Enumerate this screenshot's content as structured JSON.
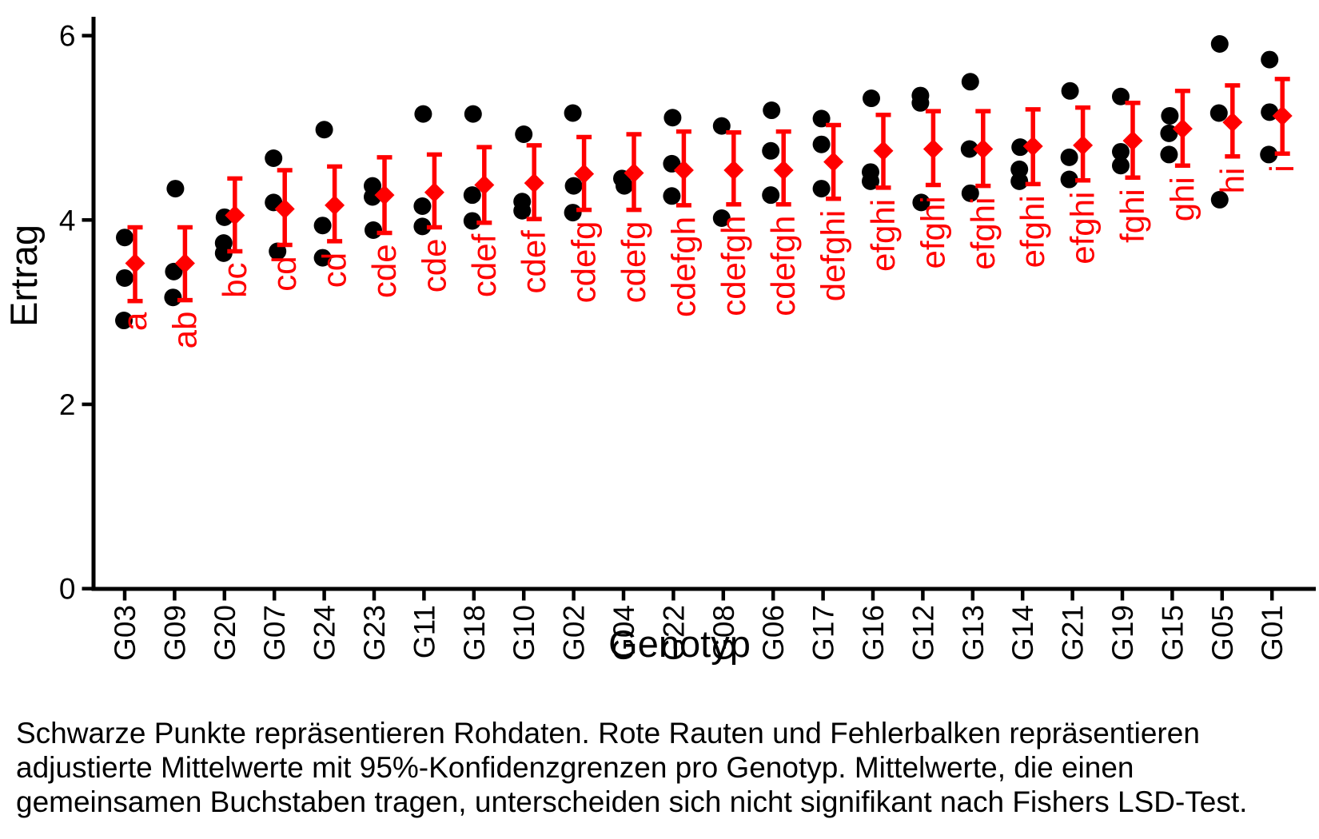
{
  "caption": {
    "lines": [
      "Schwarze Punkte repräsentieren Rohdaten. Rote Rauten und Fehlerbalken repräsentieren",
      "adjustierte Mittelwerte mit 95%-Konfidenzgrenzen pro Genotyp. Mittelwerte, die einen",
      "gemeinsamen Buchstaben tragen, unterscheiden sich nicht signifikant nach Fishers LSD-Test."
    ]
  },
  "chart_data": {
    "type": "scatter",
    "title": "",
    "xlabel": "Genotyp",
    "ylabel": "Ertrag",
    "ylim": [
      0,
      6.2
    ],
    "yticks": [
      0,
      2,
      4,
      6
    ],
    "grid": false,
    "legend": "none",
    "raw_point_color": "#000000",
    "mean_color": "#FF0000",
    "mean_symbol": "diamond",
    "interval": "95%-confidence",
    "groups": [
      {
        "genotype": "G03",
        "raw": [
          3.81,
          3.37,
          2.91
        ],
        "dx": [
          0,
          0,
          -1
        ],
        "mean": 3.53,
        "ci_low": 3.12,
        "ci_high": 3.92,
        "letters": "a"
      },
      {
        "genotype": "G09",
        "raw": [
          4.34,
          3.44,
          3.16
        ],
        "dx": [
          1,
          -1,
          -2
        ],
        "mean": 3.53,
        "ci_low": 3.13,
        "ci_high": 3.92,
        "letters": "ab"
      },
      {
        "genotype": "G20",
        "raw": [
          4.03,
          3.75,
          3.64
        ],
        "dx": [
          0,
          -1,
          -1
        ],
        "mean": 4.05,
        "ci_low": 3.66,
        "ci_high": 4.45,
        "letters": "bc"
      },
      {
        "genotype": "G07",
        "raw": [
          4.67,
          4.19,
          3.66
        ],
        "dx": [
          -1,
          -1,
          4
        ],
        "mean": 4.12,
        "ci_low": 3.73,
        "ci_high": 4.54,
        "letters": "cd"
      },
      {
        "genotype": "G24",
        "raw": [
          4.98,
          3.94,
          3.59
        ],
        "dx": [
          0,
          -2,
          -2
        ],
        "mean": 4.16,
        "ci_low": 3.77,
        "ci_high": 4.58,
        "letters": "cd"
      },
      {
        "genotype": "G23",
        "raw": [
          4.37,
          4.25,
          3.89
        ],
        "dx": [
          -2,
          -2,
          -1
        ],
        "mean": 4.27,
        "ci_low": 3.86,
        "ci_high": 4.68,
        "letters": "cde"
      },
      {
        "genotype": "G11",
        "raw": [
          5.15,
          4.15,
          3.93
        ],
        "dx": [
          -1,
          -2,
          -2
        ],
        "mean": 4.3,
        "ci_low": 3.92,
        "ci_high": 4.71,
        "letters": "cde"
      },
      {
        "genotype": "G18",
        "raw": [
          5.15,
          4.27,
          3.99
        ],
        "dx": [
          -1,
          -2,
          -2
        ],
        "mean": 4.38,
        "ci_low": 3.97,
        "ci_high": 4.79,
        "letters": "cdef"
      },
      {
        "genotype": "G10",
        "raw": [
          4.93,
          4.2,
          4.1
        ],
        "dx": [
          0,
          -2,
          -2
        ],
        "mean": 4.4,
        "ci_low": 4.01,
        "ci_high": 4.81,
        "letters": "cdef"
      },
      {
        "genotype": "G02",
        "raw": [
          5.16,
          4.37,
          4.08
        ],
        "dx": [
          -1,
          0,
          -1
        ],
        "mean": 4.5,
        "ci_low": 4.11,
        "ci_high": 4.9,
        "letters": "cdefg"
      },
      {
        "genotype": "G04",
        "raw": [
          4.45,
          4.37
        ],
        "dx": [
          -2,
          1
        ],
        "mean": 4.51,
        "ci_low": 4.11,
        "ci_high": 4.93,
        "letters": "cdefg"
      },
      {
        "genotype": "G22",
        "raw": [
          5.11,
          4.61,
          4.26
        ],
        "dx": [
          -1,
          -2,
          -2
        ],
        "mean": 4.54,
        "ci_low": 4.16,
        "ci_high": 4.96,
        "letters": "cdefgh"
      },
      {
        "genotype": "G08",
        "raw": [
          5.02,
          4.02
        ],
        "dx": [
          -2,
          -2
        ],
        "mean": 4.54,
        "ci_low": 4.17,
        "ci_high": 4.95,
        "letters": "cdefgh"
      },
      {
        "genotype": "G06",
        "raw": [
          5.19,
          4.75,
          4.27
        ],
        "dx": [
          -2,
          -3,
          -3
        ],
        "mean": 4.54,
        "ci_low": 4.17,
        "ci_high": 4.96,
        "letters": "cdefgh"
      },
      {
        "genotype": "G17",
        "raw": [
          5.1,
          4.82,
          4.34
        ],
        "dx": [
          -2,
          -2,
          -2
        ],
        "mean": 4.63,
        "ci_low": 4.23,
        "ci_high": 5.03,
        "letters": "defghi"
      },
      {
        "genotype": "G16",
        "raw": [
          5.32,
          4.52,
          4.42
        ],
        "dx": [
          -2,
          -3,
          -3
        ],
        "mean": 4.75,
        "ci_low": 4.35,
        "ci_high": 5.14,
        "letters": "efghi"
      },
      {
        "genotype": "G12",
        "raw": [
          5.35,
          5.27,
          4.19
        ],
        "dx": [
          -3,
          -3,
          -2
        ],
        "mean": 4.77,
        "ci_low": 4.38,
        "ci_high": 5.18,
        "letters": "efghi"
      },
      {
        "genotype": "G13",
        "raw": [
          5.5,
          4.77,
          4.29
        ],
        "dx": [
          -3,
          -4,
          -3
        ],
        "mean": 4.77,
        "ci_low": 4.37,
        "ci_high": 5.18,
        "letters": "efghi"
      },
      {
        "genotype": "G14",
        "raw": [
          4.79,
          4.55,
          4.42
        ],
        "dx": [
          -3,
          -4,
          -4
        ],
        "mean": 4.8,
        "ci_low": 4.39,
        "ci_high": 5.2,
        "letters": "efghi"
      },
      {
        "genotype": "G21",
        "raw": [
          5.4,
          4.68,
          4.44
        ],
        "dx": [
          -3,
          -4,
          -4
        ],
        "mean": 4.81,
        "ci_low": 4.43,
        "ci_high": 5.22,
        "letters": "efghi"
      },
      {
        "genotype": "G19",
        "raw": [
          5.34,
          4.74,
          4.59
        ],
        "dx": [
          -2,
          -2,
          -2
        ],
        "mean": 4.86,
        "ci_low": 4.46,
        "ci_high": 5.27,
        "letters": "fghi"
      },
      {
        "genotype": "G15",
        "raw": [
          5.13,
          4.94,
          4.71
        ],
        "dx": [
          -3,
          -4,
          -4
        ],
        "mean": 4.99,
        "ci_low": 4.59,
        "ci_high": 5.4,
        "letters": "ghi"
      },
      {
        "genotype": "G05",
        "raw": [
          5.91,
          5.16,
          4.22
        ],
        "dx": [
          -3,
          -4,
          -3
        ],
        "mean": 5.06,
        "ci_low": 4.69,
        "ci_high": 5.46,
        "letters": "hi"
      },
      {
        "genotype": "G01",
        "raw": [
          5.74,
          5.17,
          4.71
        ],
        "dx": [
          -3,
          -3,
          -4
        ],
        "mean": 5.13,
        "ci_low": 4.72,
        "ci_high": 5.53,
        "letters": "i"
      }
    ]
  }
}
